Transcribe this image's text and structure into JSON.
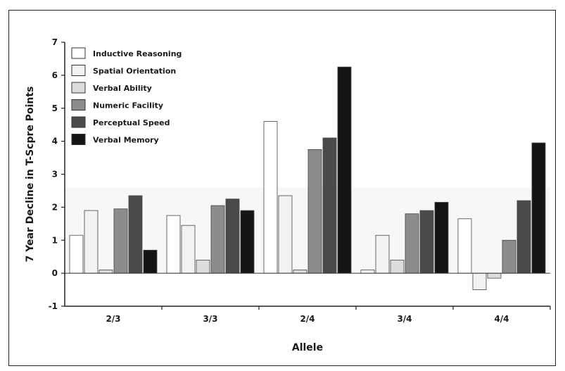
{
  "chart_data": {
    "type": "bar",
    "title": "",
    "xlabel": "Allele",
    "ylabel": "7 Year Decline in T-Scpre Points",
    "ylim": [
      -1,
      7
    ],
    "yticks": [
      "7",
      "6",
      "5",
      "4",
      "3",
      "2",
      "1",
      "0",
      "-1"
    ],
    "categories": [
      "2/3",
      "3/3",
      "2/4",
      "3/4",
      "4/4"
    ],
    "legend_position": "top-left",
    "series": [
      {
        "name": "Inductive Reasoning",
        "fill": "#ffffff",
        "values": [
          1.15,
          1.75,
          4.6,
          0.1,
          1.65
        ]
      },
      {
        "name": "Spatial Orientation",
        "fill": "#f2f2f2",
        "values": [
          1.9,
          1.45,
          2.35,
          1.15,
          -0.5
        ]
      },
      {
        "name": "Verbal Ability",
        "fill": "#dcdcdc",
        "values": [
          0.1,
          0.4,
          0.1,
          0.4,
          -0.15
        ]
      },
      {
        "name": "Numeric Facility",
        "fill": "#8c8c8c",
        "values": [
          1.95,
          2.05,
          3.75,
          1.8,
          1.0
        ]
      },
      {
        "name": "Perceptual Speed",
        "fill": "#4a4a4a",
        "values": [
          2.35,
          2.25,
          4.1,
          1.9,
          2.2
        ]
      },
      {
        "name": "Verbal Memory",
        "fill": "#141414",
        "values": [
          0.7,
          1.9,
          6.25,
          2.15,
          3.95
        ]
      }
    ]
  }
}
